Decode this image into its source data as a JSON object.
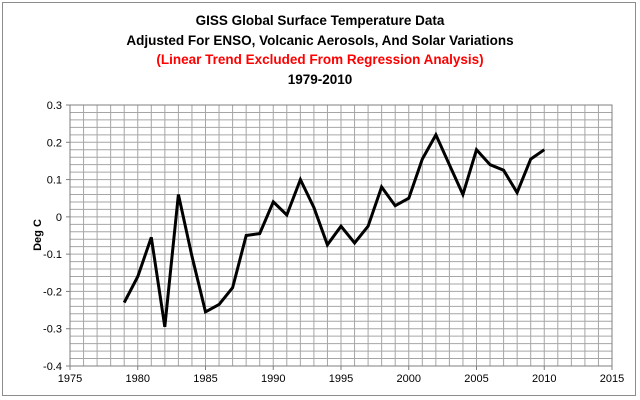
{
  "chart_data": {
    "type": "line",
    "title_lines": [
      "GISS Global Surface Temperature Data",
      "Adjusted For ENSO, Volcanic Aerosols, And Solar Variations",
      "(Linear Trend Excluded From Regression Analysis)",
      "1979-2010"
    ],
    "title_colors": [
      "#000000",
      "#000000",
      "#ff0000",
      "#000000"
    ],
    "xlabel": "",
    "ylabel": "Deg C",
    "xlim": [
      1975,
      2015
    ],
    "ylim": [
      -0.4,
      0.3
    ],
    "x_major_step": 5,
    "x_minor_step": 1,
    "y_major_step": 0.1,
    "y_minor_step": 0.02,
    "grid": true,
    "x_tick_labels": [
      "1975",
      "1980",
      "1985",
      "1990",
      "1995",
      "2000",
      "2005",
      "2010",
      "2015"
    ],
    "y_tick_labels": [
      "0.3",
      "0.2",
      "0.1",
      "0",
      "-0.1",
      "-0.2",
      "-0.3",
      "-0.4"
    ],
    "line_color": "#000000",
    "series": [
      {
        "x": [
          1979,
          1980,
          1981,
          1982,
          1983,
          1984,
          1985,
          1986,
          1987,
          1988,
          1989,
          1990,
          1991,
          1992,
          1993,
          1994,
          1995,
          1996,
          1997,
          1998,
          1999,
          2000,
          2001,
          2002,
          2003,
          2004,
          2005,
          2006,
          2007,
          2008,
          2009,
          2010
        ],
        "values": [
          -0.23,
          -0.16,
          -0.055,
          -0.295,
          0.06,
          -0.105,
          -0.255,
          -0.235,
          -0.19,
          -0.05,
          -0.045,
          0.04,
          0.005,
          0.1,
          0.025,
          -0.075,
          -0.025,
          -0.07,
          -0.025,
          0.08,
          0.03,
          0.05,
          0.155,
          0.22,
          0.14,
          0.06,
          0.18,
          0.14,
          0.125,
          0.065,
          0.155,
          0.18
        ]
      }
    ]
  }
}
